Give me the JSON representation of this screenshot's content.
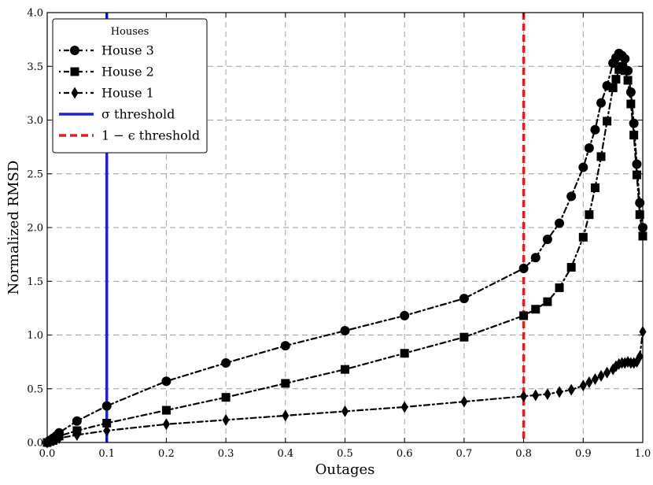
{
  "chart_data": {
    "type": "line",
    "xlabel": "Outages",
    "ylabel": "Normalized RMSD",
    "xlim": [
      0.0,
      1.0
    ],
    "ylim": [
      0.0,
      4.0
    ],
    "xticks": [
      "0.0",
      "0.1",
      "0.2",
      "0.3",
      "0.4",
      "0.5",
      "0.6",
      "0.7",
      "0.8",
      "0.9",
      "1.0"
    ],
    "yticks": [
      "0.0",
      "0.5",
      "1.0",
      "1.5",
      "2.0",
      "2.5",
      "3.0",
      "3.5",
      "4.0"
    ],
    "grid": true,
    "legend": {
      "title": "Houses",
      "placement": "top-left",
      "entries": [
        "House 3",
        "House 2",
        "House 1",
        "σ threshold",
        "1 − ϵ threshold"
      ]
    },
    "series": [
      {
        "name": "House 3",
        "marker": "circle",
        "color": "#000000",
        "x": [
          0.0,
          0.005,
          0.01,
          0.015,
          0.02,
          0.05,
          0.1,
          0.2,
          0.3,
          0.4,
          0.5,
          0.6,
          0.7,
          0.8,
          0.82,
          0.84,
          0.86,
          0.88,
          0.9,
          0.91,
          0.92,
          0.93,
          0.94,
          0.95,
          0.955,
          0.96,
          0.965,
          0.97,
          0.975,
          0.98,
          0.985,
          0.99,
          0.995,
          1.0
        ],
        "y": [
          0.0,
          0.02,
          0.04,
          0.06,
          0.09,
          0.2,
          0.34,
          0.57,
          0.74,
          0.9,
          1.04,
          1.18,
          1.34,
          1.62,
          1.72,
          1.89,
          2.04,
          2.29,
          2.56,
          2.74,
          2.91,
          3.16,
          3.32,
          3.53,
          3.58,
          3.62,
          3.6,
          3.57,
          3.46,
          3.26,
          2.97,
          2.59,
          2.23,
          2.0
        ]
      },
      {
        "name": "House 2",
        "marker": "square",
        "color": "#000000",
        "x": [
          0.0,
          0.005,
          0.01,
          0.015,
          0.02,
          0.05,
          0.1,
          0.2,
          0.3,
          0.4,
          0.5,
          0.6,
          0.7,
          0.8,
          0.82,
          0.84,
          0.86,
          0.88,
          0.9,
          0.91,
          0.92,
          0.93,
          0.94,
          0.95,
          0.955,
          0.96,
          0.965,
          0.97,
          0.975,
          0.98,
          0.985,
          0.99,
          0.995,
          1.0
        ],
        "y": [
          0.0,
          0.01,
          0.02,
          0.04,
          0.06,
          0.11,
          0.18,
          0.3,
          0.42,
          0.55,
          0.68,
          0.83,
          0.98,
          1.18,
          1.24,
          1.31,
          1.44,
          1.63,
          1.91,
          2.12,
          2.37,
          2.66,
          2.99,
          3.3,
          3.38,
          3.47,
          3.5,
          3.46,
          3.37,
          3.15,
          2.86,
          2.49,
          2.12,
          1.92
        ]
      },
      {
        "name": "House 1",
        "marker": "diamond",
        "color": "#000000",
        "x": [
          0.0,
          0.005,
          0.01,
          0.015,
          0.02,
          0.05,
          0.1,
          0.2,
          0.3,
          0.4,
          0.5,
          0.6,
          0.7,
          0.8,
          0.82,
          0.84,
          0.86,
          0.88,
          0.9,
          0.91,
          0.92,
          0.93,
          0.94,
          0.95,
          0.955,
          0.96,
          0.965,
          0.97,
          0.975,
          0.98,
          0.985,
          0.99,
          0.995,
          1.0
        ],
        "y": [
          0.0,
          0.01,
          0.02,
          0.03,
          0.04,
          0.07,
          0.11,
          0.17,
          0.21,
          0.25,
          0.29,
          0.33,
          0.38,
          0.43,
          0.44,
          0.45,
          0.47,
          0.49,
          0.53,
          0.56,
          0.59,
          0.62,
          0.65,
          0.68,
          0.71,
          0.73,
          0.74,
          0.74,
          0.75,
          0.74,
          0.74,
          0.75,
          0.8,
          1.03
        ]
      }
    ],
    "thresholds": [
      {
        "name": "σ threshold",
        "x": 0.1,
        "color": "#1f1fdd",
        "style": "solid"
      },
      {
        "name": "1 − ϵ threshold",
        "x": 0.8,
        "color": "#e0201b",
        "style": "dashed"
      }
    ]
  }
}
